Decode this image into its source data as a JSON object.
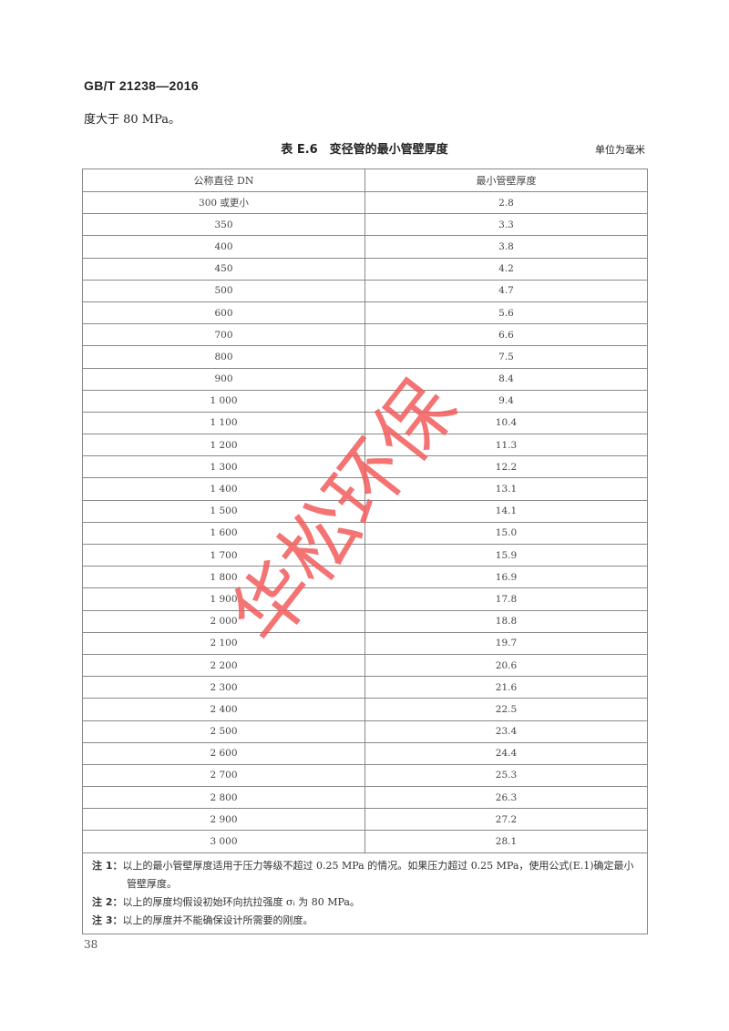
{
  "header": {
    "standard_number": "GB/T 21238—2016"
  },
  "continuation_text": "度大于 80 MPa。",
  "table": {
    "title": "表 E.6　变径管的最小管壁厚度",
    "unit": "单位为毫米",
    "columns": [
      "公称直径 DN",
      "最小管壁厚度"
    ],
    "rows": [
      [
        "300 或更小",
        "2.8"
      ],
      [
        "350",
        "3.3"
      ],
      [
        "400",
        "3.8"
      ],
      [
        "450",
        "4.2"
      ],
      [
        "500",
        "4.7"
      ],
      [
        "600",
        "5.6"
      ],
      [
        "700",
        "6.6"
      ],
      [
        "800",
        "7.5"
      ],
      [
        "900",
        "8.4"
      ],
      [
        "1 000",
        "9.4"
      ],
      [
        "1 100",
        "10.4"
      ],
      [
        "1 200",
        "11.3"
      ],
      [
        "1 300",
        "12.2"
      ],
      [
        "1 400",
        "13.1"
      ],
      [
        "1 500",
        "14.1"
      ],
      [
        "1 600",
        "15.0"
      ],
      [
        "1 700",
        "15.9"
      ],
      [
        "1 800",
        "16.9"
      ],
      [
        "1 900",
        "17.8"
      ],
      [
        "2 000",
        "18.8"
      ],
      [
        "2 100",
        "19.7"
      ],
      [
        "2 200",
        "20.6"
      ],
      [
        "2 300",
        "21.6"
      ],
      [
        "2 400",
        "22.5"
      ],
      [
        "2 500",
        "23.4"
      ],
      [
        "2 600",
        "24.4"
      ],
      [
        "2 700",
        "25.3"
      ],
      [
        "2 800",
        "26.3"
      ],
      [
        "2 900",
        "27.2"
      ],
      [
        "3 000",
        "28.1"
      ]
    ],
    "notes": [
      {
        "label": "注 1：",
        "text": "以上的最小管壁厚度适用于压力等级不超过 0.25 MPa 的情况。如果压力超过 0.25 MPa，使用公式(E.1)确定最小管壁厚度。"
      },
      {
        "label": "注 2：",
        "text": "以上的厚度均假设初始环向抗拉强度 σᵢ 为 80 MPa。"
      },
      {
        "label": "注 3：",
        "text": "以上的厚度并不能确保设计所需要的刚度。"
      }
    ]
  },
  "page_number": "38",
  "watermark": {
    "text": "华松环保",
    "color": "#f25a5a"
  }
}
